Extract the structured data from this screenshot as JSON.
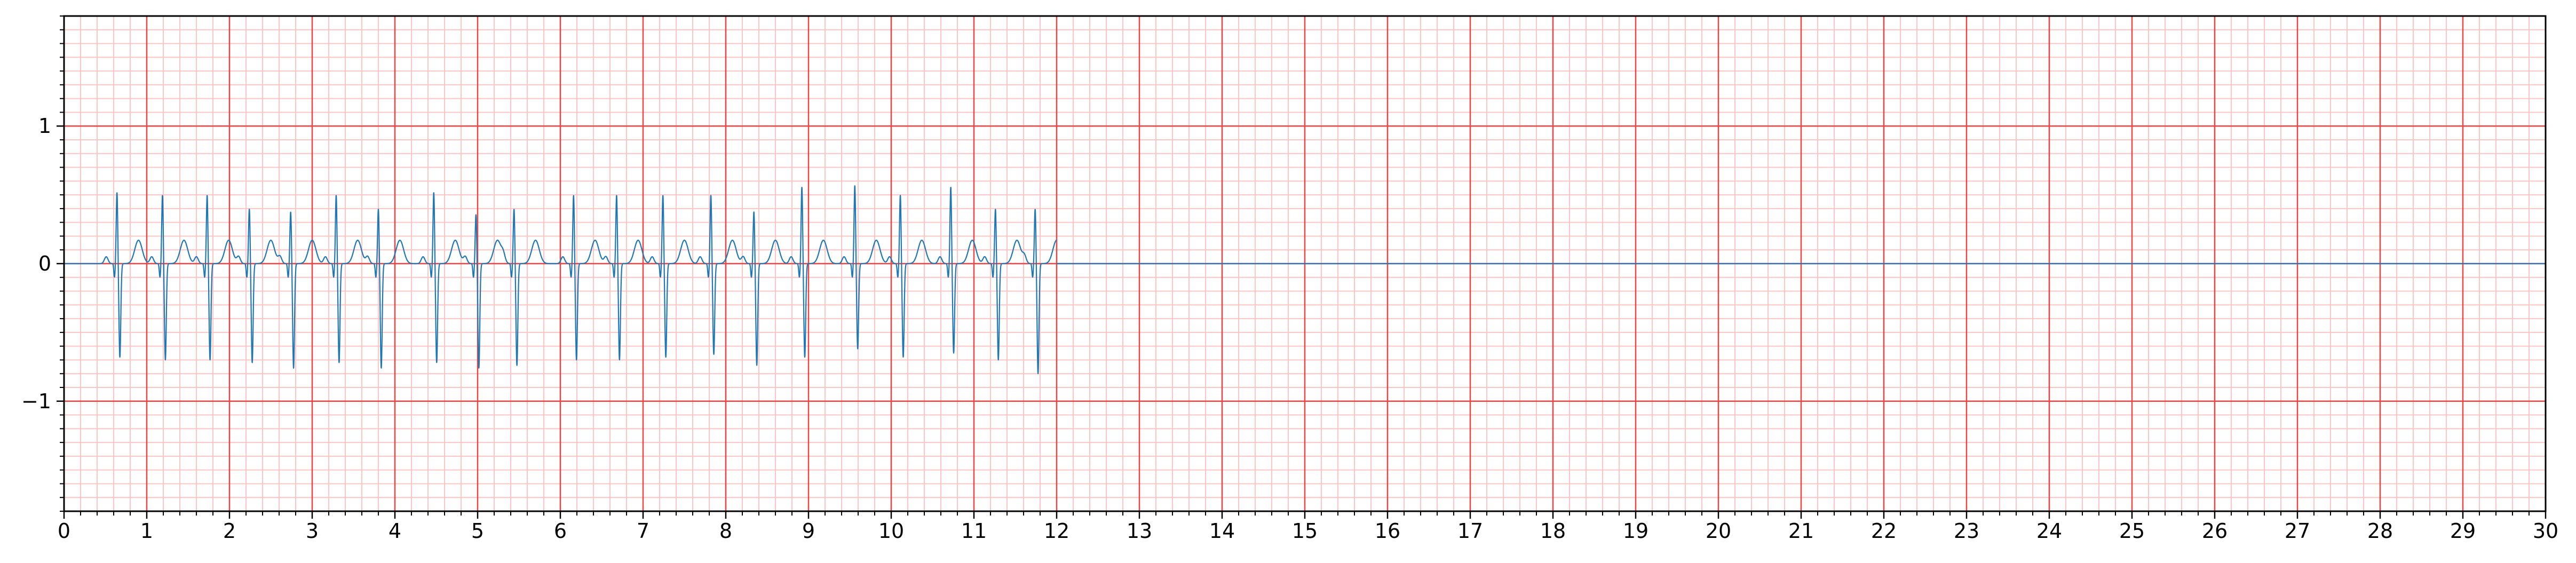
{
  "chart_data": {
    "type": "line",
    "title": "",
    "xlabel": "",
    "ylabel": "",
    "xlim": [
      0,
      30
    ],
    "ylim": [
      -1.8,
      1.8
    ],
    "x_ticks": [
      0,
      1,
      2,
      3,
      4,
      5,
      6,
      7,
      8,
      9,
      10,
      11,
      12,
      13,
      14,
      15,
      16,
      17,
      18,
      19,
      20,
      21,
      22,
      23,
      24,
      25,
      26,
      27,
      28,
      29,
      30
    ],
    "x_tick_labels": [
      "0",
      "1",
      "2",
      "3",
      "4",
      "5",
      "6",
      "7",
      "8",
      "9",
      "10",
      "11",
      "12",
      "13",
      "14",
      "15",
      "16",
      "17",
      "18",
      "19",
      "20",
      "21",
      "22",
      "23",
      "24",
      "25",
      "26",
      "27",
      "28",
      "29",
      "30"
    ],
    "y_ticks": [
      -1,
      0,
      1
    ],
    "y_tick_labels": [
      "−1",
      "0",
      "1"
    ],
    "grid": {
      "major": true,
      "minor": true,
      "x_major_step": 1,
      "x_minor_step": 0.2,
      "y_major_step": 1,
      "y_minor_step": 0.1,
      "major_color": "#ee4444",
      "minor_color": "#ffc4c4"
    },
    "line_color": "#1f77b4",
    "signal_end": 12.0,
    "beats": [
      {
        "t": 0.64,
        "r": 0.52,
        "s": -0.68
      },
      {
        "t": 1.19,
        "r": 0.5,
        "s": -0.7
      },
      {
        "t": 1.73,
        "r": 0.5,
        "s": -0.7
      },
      {
        "t": 2.24,
        "r": 0.4,
        "s": -0.72
      },
      {
        "t": 2.74,
        "r": 0.38,
        "s": -0.76
      },
      {
        "t": 3.29,
        "r": 0.5,
        "s": -0.72
      },
      {
        "t": 3.8,
        "r": 0.4,
        "s": -0.76
      },
      {
        "t": 4.47,
        "r": 0.52,
        "s": -0.72
      },
      {
        "t": 4.98,
        "r": 0.36,
        "s": -0.76
      },
      {
        "t": 5.44,
        "r": 0.4,
        "s": -0.74
      },
      {
        "t": 6.16,
        "r": 0.5,
        "s": -0.7
      },
      {
        "t": 6.68,
        "r": 0.5,
        "s": -0.7
      },
      {
        "t": 7.24,
        "r": 0.5,
        "s": -0.68
      },
      {
        "t": 7.82,
        "r": 0.5,
        "s": -0.66
      },
      {
        "t": 8.34,
        "r": 0.38,
        "s": -0.74
      },
      {
        "t": 8.92,
        "r": 0.56,
        "s": -0.68
      },
      {
        "t": 9.56,
        "r": 0.57,
        "s": -0.62
      },
      {
        "t": 10.11,
        "r": 0.5,
        "s": -0.68
      },
      {
        "t": 10.72,
        "r": 0.56,
        "s": -0.65
      },
      {
        "t": 11.26,
        "r": 0.4,
        "s": -0.7
      },
      {
        "t": 11.74,
        "r": 0.4,
        "s": -0.8
      }
    ]
  }
}
